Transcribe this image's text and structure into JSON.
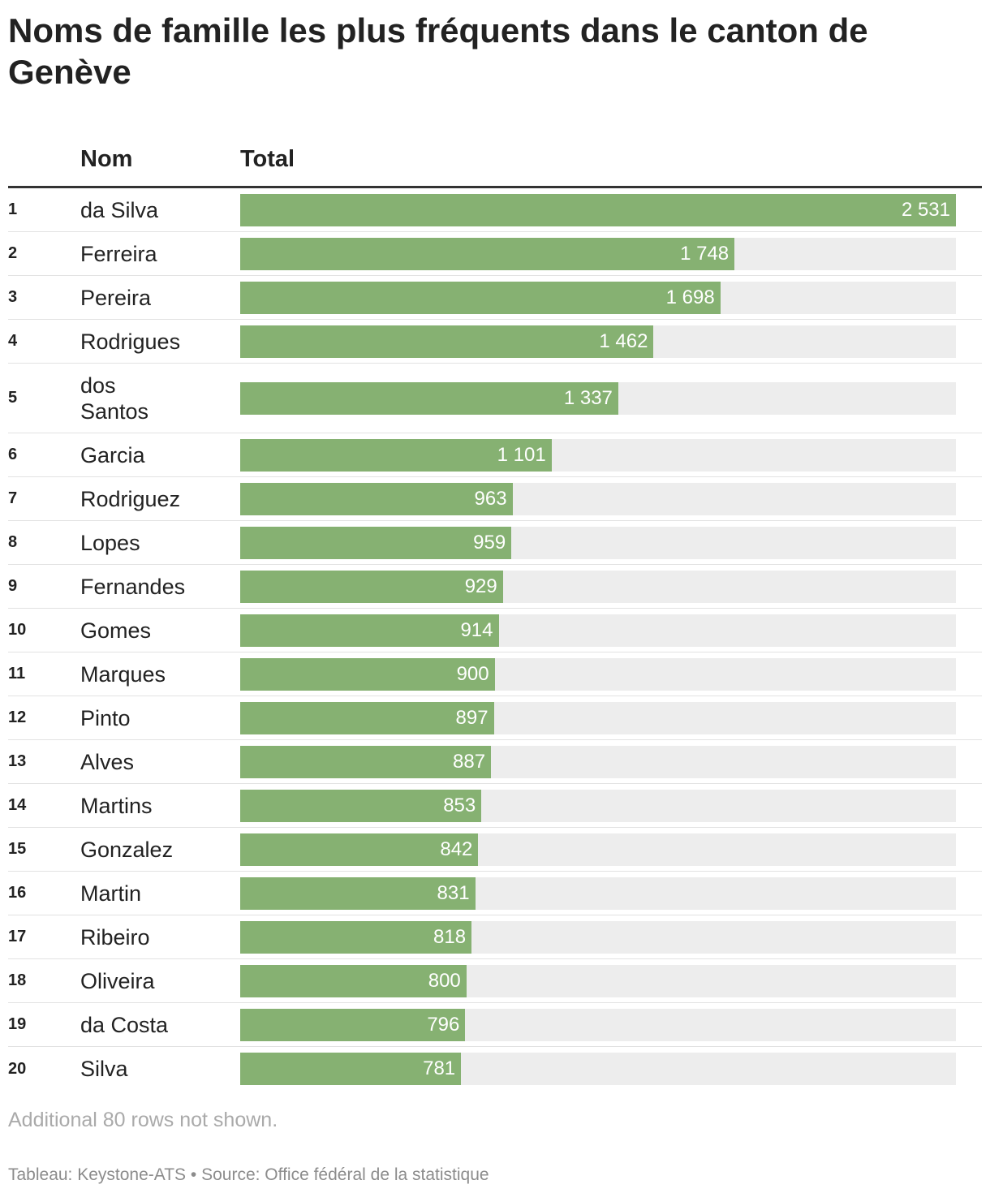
{
  "title": "Noms de famille les plus fréquents dans le canton de Genève",
  "header": {
    "col_name": "Nom",
    "col_total": "Total"
  },
  "colors": {
    "bar": "#86b172",
    "track": "#ededed"
  },
  "chart_data": {
    "type": "bar",
    "orientation": "horizontal",
    "xlim": [
      0,
      2531
    ],
    "ranks": [
      "1",
      "2",
      "3",
      "4",
      "5",
      "6",
      "7",
      "8",
      "9",
      "10",
      "11",
      "12",
      "13",
      "14",
      "15",
      "16",
      "17",
      "18",
      "19",
      "20"
    ],
    "categories": [
      "da Silva",
      "Ferreira",
      "Pereira",
      "Rodrigues",
      "dos Santos",
      "Garcia",
      "Rodriguez",
      "Lopes",
      "Fernandes",
      "Gomes",
      "Marques",
      "Pinto",
      "Alves",
      "Martins",
      "Gonzalez",
      "Martin",
      "Ribeiro",
      "Oliveira",
      "da Costa",
      "Silva"
    ],
    "values": [
      2531,
      1748,
      1698,
      1462,
      1337,
      1101,
      963,
      959,
      929,
      914,
      900,
      897,
      887,
      853,
      842,
      831,
      818,
      800,
      796,
      781
    ],
    "labels": [
      "2 531",
      "1 748",
      "1 698",
      "1 462",
      "1 337",
      "1 101",
      "963",
      "959",
      "929",
      "914",
      "900",
      "897",
      "887",
      "853",
      "842",
      "831",
      "818",
      "800",
      "796",
      "781"
    ]
  },
  "footer": {
    "note": "Additional 80 rows not shown.",
    "source": "Tableau: Keystone-ATS • Source: Office fédéral de la statistique"
  }
}
